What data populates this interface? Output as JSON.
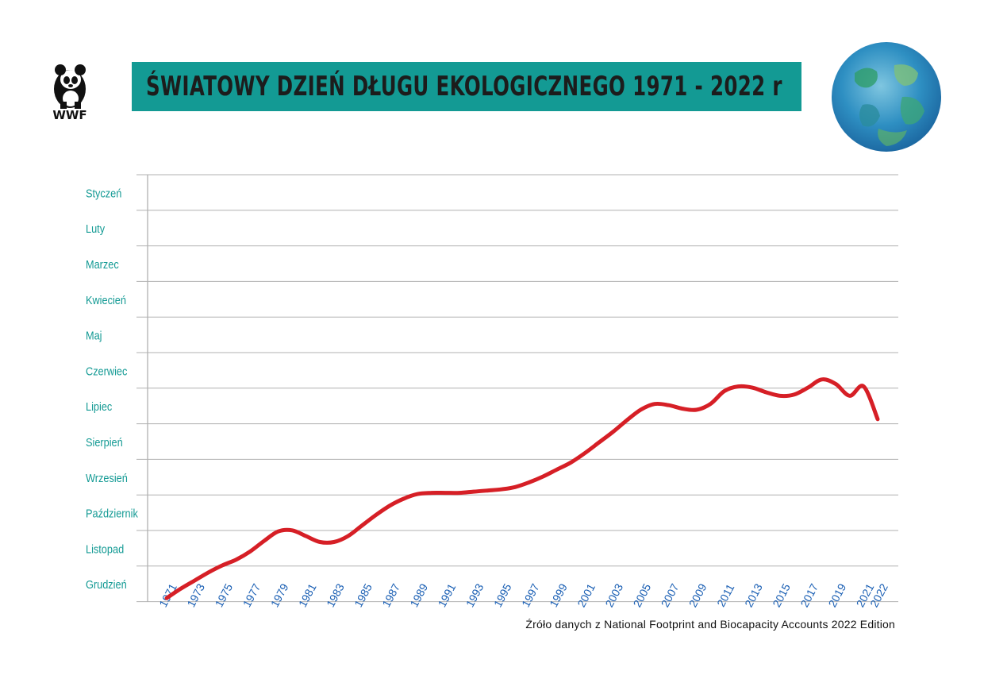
{
  "header": {
    "title": "ŚWIATOWY DZIEŃ DŁUGU EKOLOGICZNEGO 1971 - 2022 r",
    "logo_text": "WWF"
  },
  "footer": {
    "source": "Źróło danych z National Footprint and Biocapacity Accounts 2022 Edition"
  },
  "colors": {
    "banner": "#139a94",
    "line": "#d61f26",
    "month_labels": "#139a94",
    "year_labels": "#1a5fb4",
    "grid": "#b0b0b0"
  },
  "chart_data": {
    "type": "line",
    "y_categories": [
      "Styczeń",
      "Luty",
      "Marzec",
      "Kwiecień",
      "Maj",
      "Czerwiec",
      "Lipiec",
      "Sierpień",
      "Wrzesień",
      "Październik",
      "Listopad",
      "Grudzień"
    ],
    "x_tick_labels": [
      "1971",
      "1973",
      "1975",
      "1977",
      "1979",
      "1981",
      "1983",
      "1985",
      "1987",
      "1989",
      "1991",
      "1993",
      "1995",
      "1997",
      "1999",
      "2001",
      "2003",
      "2005",
      "2007",
      "2009",
      "2011",
      "2013",
      "2015",
      "2017",
      "2019",
      "2021",
      "2022"
    ],
    "xlim": [
      1971,
      2022
    ],
    "series": [
      {
        "x": [
          1971,
          1972,
          1973,
          1974,
          1975,
          1976,
          1977,
          1978,
          1979,
          1980,
          1981,
          1982,
          1983,
          1984,
          1985,
          1986,
          1987,
          1988,
          1989,
          1990,
          1991,
          1992,
          1993,
          1994,
          1995,
          1996,
          1997,
          1998,
          1999,
          2000,
          2001,
          2002,
          2003,
          2004,
          2005,
          2006,
          2007,
          2008,
          2009,
          2010,
          2011,
          2012,
          2013,
          2014,
          2015,
          2016,
          2017,
          2018,
          2019,
          2020,
          2021,
          2022
        ],
        "y": [
          "12-29",
          "12-21",
          "12-14",
          "12-07",
          "12-01",
          "11-26",
          "11-19",
          "11-10",
          "11-02",
          "11-01",
          "11-06",
          "11-11",
          "11-11",
          "11-06",
          "10-28",
          "10-19",
          "10-11",
          "10-05",
          "10-01",
          "09-30",
          "09-30",
          "09-30",
          "09-29",
          "09-28",
          "09-27",
          "09-25",
          "09-21",
          "09-16",
          "09-10",
          "09-04",
          "08-27",
          "08-18",
          "08-09",
          "07-30",
          "07-21",
          "07-16",
          "07-17",
          "07-20",
          "07-21",
          "07-16",
          "07-05",
          "07-01",
          "07-02",
          "07-06",
          "07-09",
          "07-08",
          "07-02",
          "06-25",
          "06-29",
          "07-09",
          "07-01",
          "07-29"
        ]
      }
    ]
  }
}
